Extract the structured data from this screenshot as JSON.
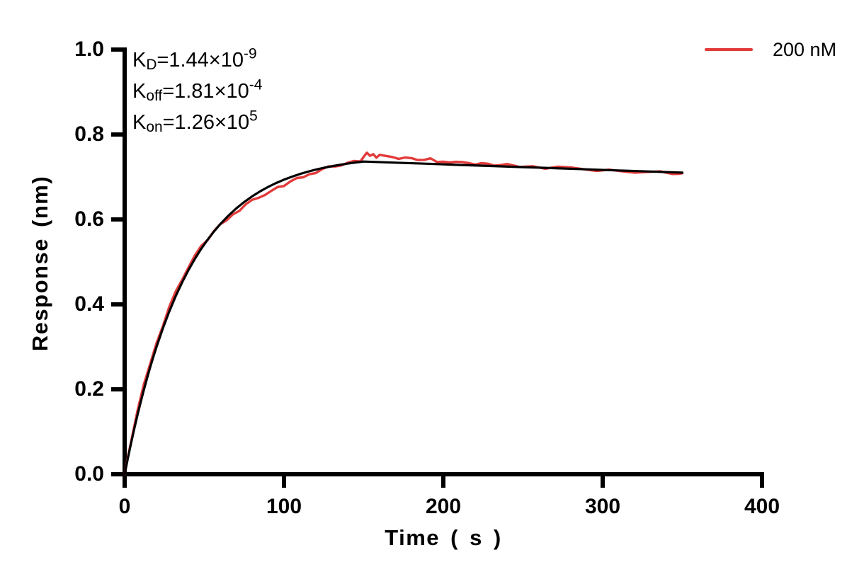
{
  "chart_data": {
    "type": "line",
    "title": "",
    "xlabel": "Time ( s )",
    "ylabel": "Response (nm)",
    "xlim": [
      0,
      400
    ],
    "ylim": [
      0,
      1.0
    ],
    "x_ticks": [
      0,
      100,
      200,
      300,
      400
    ],
    "x_tick_labels": [
      "0",
      "100",
      "200",
      "300",
      "400"
    ],
    "y_ticks": [
      0.0,
      0.2,
      0.4,
      0.6,
      0.8,
      1.0
    ],
    "y_tick_labels": [
      "0.0",
      "0.2",
      "0.4",
      "0.6",
      "0.8",
      "1.0"
    ],
    "grid": false,
    "axis_color": "#000000",
    "background_color": "#ffffff",
    "annotations": [
      {
        "base": "K",
        "sub": "D",
        "mid": "=1.44×10",
        "sup": "-9"
      },
      {
        "base": "K",
        "sub": "off",
        "mid": "=1.81×10",
        "sup": "-4"
      },
      {
        "base": "K",
        "sub": "on",
        "mid": "=1.26×10",
        "sup": "5"
      }
    ],
    "legend": {
      "position": "top-right",
      "entries": [
        {
          "label": "200 nM",
          "color": "#E23B3B"
        }
      ]
    },
    "series": [
      {
        "name": "200 nM data",
        "color": "#E23B3B",
        "stroke_width": 3.4,
        "points": [
          [
            0,
            0.0
          ],
          [
            2,
            0.04
          ],
          [
            4,
            0.0757
          ],
          [
            8,
            0.1485
          ],
          [
            12,
            0.2108
          ],
          [
            16,
            0.2595
          ],
          [
            20,
            0.3089
          ],
          [
            24,
            0.3487
          ],
          [
            28,
            0.3942
          ],
          [
            32,
            0.43
          ],
          [
            36,
            0.4572
          ],
          [
            40,
            0.4864
          ],
          [
            44,
            0.5147
          ],
          [
            48,
            0.5375
          ],
          [
            52,
            0.551
          ],
          [
            56,
            0.5724
          ],
          [
            60,
            0.589
          ],
          [
            64,
            0.5978
          ],
          [
            68,
            0.6121
          ],
          [
            72,
            0.6201
          ],
          [
            76,
            0.6357
          ],
          [
            80,
            0.6463
          ],
          [
            84,
            0.6508
          ],
          [
            88,
            0.6574
          ],
          [
            92,
            0.6672
          ],
          [
            96,
            0.6763
          ],
          [
            100,
            0.6786
          ],
          [
            104,
            0.6893
          ],
          [
            108,
            0.6975
          ],
          [
            112,
            0.6992
          ],
          [
            116,
            0.7065
          ],
          [
            120,
            0.7093
          ],
          [
            124,
            0.7187
          ],
          [
            128,
            0.7249
          ],
          [
            132,
            0.7246
          ],
          [
            136,
            0.7272
          ],
          [
            140,
            0.7335
          ],
          [
            144,
            0.7376
          ],
          [
            148,
            0.7365
          ],
          [
            150,
            0.7474
          ],
          [
            152,
            0.7571
          ],
          [
            154,
            0.7499
          ],
          [
            156,
            0.7536
          ],
          [
            158,
            0.7453
          ],
          [
            160,
            0.7521
          ],
          [
            164,
            0.7495
          ],
          [
            168,
            0.747
          ],
          [
            172,
            0.7425
          ],
          [
            176,
            0.7459
          ],
          [
            180,
            0.7444
          ],
          [
            184,
            0.7399
          ],
          [
            188,
            0.7403
          ],
          [
            192,
            0.7438
          ],
          [
            196,
            0.7353
          ],
          [
            200,
            0.7358
          ],
          [
            204,
            0.7342
          ],
          [
            208,
            0.7357
          ],
          [
            212,
            0.7352
          ],
          [
            216,
            0.7327
          ],
          [
            220,
            0.7291
          ],
          [
            224,
            0.7326
          ],
          [
            228,
            0.7311
          ],
          [
            232,
            0.7266
          ],
          [
            236,
            0.728
          ],
          [
            240,
            0.7305
          ],
          [
            248,
            0.7235
          ],
          [
            256,
            0.7254
          ],
          [
            264,
            0.7195
          ],
          [
            272,
            0.7243
          ],
          [
            280,
            0.7223
          ],
          [
            288,
            0.7182
          ],
          [
            296,
            0.7142
          ],
          [
            304,
            0.7171
          ],
          [
            312,
            0.7133
          ],
          [
            320,
            0.7101
          ],
          [
            328,
            0.7119
          ],
          [
            336,
            0.7132
          ],
          [
            344,
            0.707
          ],
          [
            348,
            0.7074
          ],
          [
            350,
            0.709
          ]
        ]
      },
      {
        "name": "kinetic fit",
        "color": "#000000",
        "stroke_width": 3.2,
        "points": [
          [
            0,
            0.0
          ],
          [
            1,
            0.0189
          ],
          [
            2,
            0.0373
          ],
          [
            3,
            0.0553
          ],
          [
            4,
            0.0727
          ],
          [
            6,
            0.1064
          ],
          [
            8,
            0.1385
          ],
          [
            10,
            0.1689
          ],
          [
            12,
            0.1978
          ],
          [
            14,
            0.2253
          ],
          [
            16,
            0.2515
          ],
          [
            18,
            0.2763
          ],
          [
            20,
            0.2999
          ],
          [
            24,
            0.3437
          ],
          [
            28,
            0.3832
          ],
          [
            32,
            0.419
          ],
          [
            36,
            0.4512
          ],
          [
            40,
            0.4804
          ],
          [
            44,
            0.5067
          ],
          [
            48,
            0.5305
          ],
          [
            52,
            0.552
          ],
          [
            56,
            0.5714
          ],
          [
            60,
            0.589
          ],
          [
            65,
            0.6086
          ],
          [
            70,
            0.6258
          ],
          [
            75,
            0.641
          ],
          [
            80,
            0.6543
          ],
          [
            85,
            0.6661
          ],
          [
            90,
            0.6765
          ],
          [
            95,
            0.6856
          ],
          [
            100,
            0.6936
          ],
          [
            105,
            0.7007
          ],
          [
            110,
            0.707
          ],
          [
            115,
            0.7125
          ],
          [
            120,
            0.7173
          ],
          [
            125,
            0.7216
          ],
          [
            130,
            0.7253
          ],
          [
            135,
            0.7286
          ],
          [
            140,
            0.7315
          ],
          [
            145,
            0.7341
          ],
          [
            150,
            0.7364
          ],
          [
            170,
            0.7337
          ],
          [
            190,
            0.7311
          ],
          [
            210,
            0.7284
          ],
          [
            230,
            0.7258
          ],
          [
            250,
            0.7232
          ],
          [
            270,
            0.7206
          ],
          [
            290,
            0.718
          ],
          [
            310,
            0.7154
          ],
          [
            330,
            0.7128
          ],
          [
            350,
            0.7102
          ]
        ]
      }
    ]
  }
}
